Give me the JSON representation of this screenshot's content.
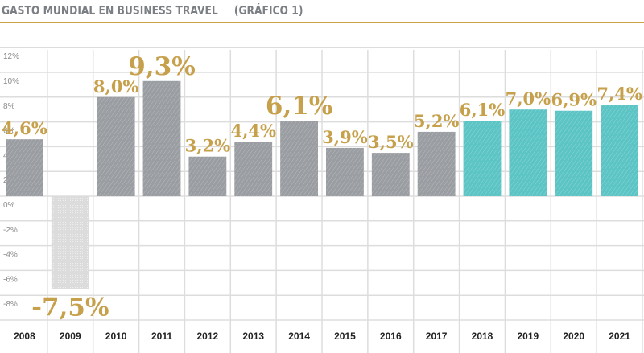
{
  "header": {
    "title": "GASTO MUNDIAL EN BUSINESS TRAVEL",
    "subtitle": "(GRÁFICO 1)"
  },
  "colors": {
    "accent": "#c9a24a",
    "label": "#c6a04a",
    "historic_bar": "#9a9da1",
    "negative_bar": "#dcdcdc",
    "forecast_bar": "#5cc4c4",
    "grid": "#dddddd"
  },
  "chart_data": {
    "type": "bar",
    "title": "GASTO MUNDIAL EN BUSINESS TRAVEL (GRÁFICO 1)",
    "xlabel": "",
    "ylabel": "",
    "categories": [
      "2008",
      "2009",
      "2010",
      "2011",
      "2012",
      "2013",
      "2014",
      "2015",
      "2016",
      "2017",
      "2018",
      "2019",
      "2020",
      "2021"
    ],
    "values": [
      4.6,
      -7.5,
      8.0,
      9.3,
      3.2,
      4.4,
      6.1,
      3.9,
      3.5,
      5.2,
      6.1,
      7.0,
      6.9,
      7.4
    ],
    "labels": [
      "4,6%",
      "-7,5%",
      "8,0%",
      "9,3%",
      "3,2%",
      "4,4%",
      "6,1%",
      "3,9%",
      "3,5%",
      "5,2%",
      "6,1%",
      "7,0%",
      "6,9%",
      "7,4%"
    ],
    "emphasized_labels": [
      "2009",
      "2011",
      "2014"
    ],
    "forecast_categories": [
      "2018",
      "2019",
      "2020",
      "2021"
    ],
    "ylim": [
      -10,
      12
    ],
    "yticks": [
      12,
      10,
      8,
      6,
      4,
      2,
      0,
      -2,
      -4,
      -6,
      -8
    ],
    "ytick_labels": [
      "12%",
      "10%",
      "8%",
      "6%",
      "4%",
      "2%",
      "0%",
      "-2%",
      "-4%",
      "-6%",
      "-8%"
    ],
    "grid": true,
    "legend": "none"
  }
}
